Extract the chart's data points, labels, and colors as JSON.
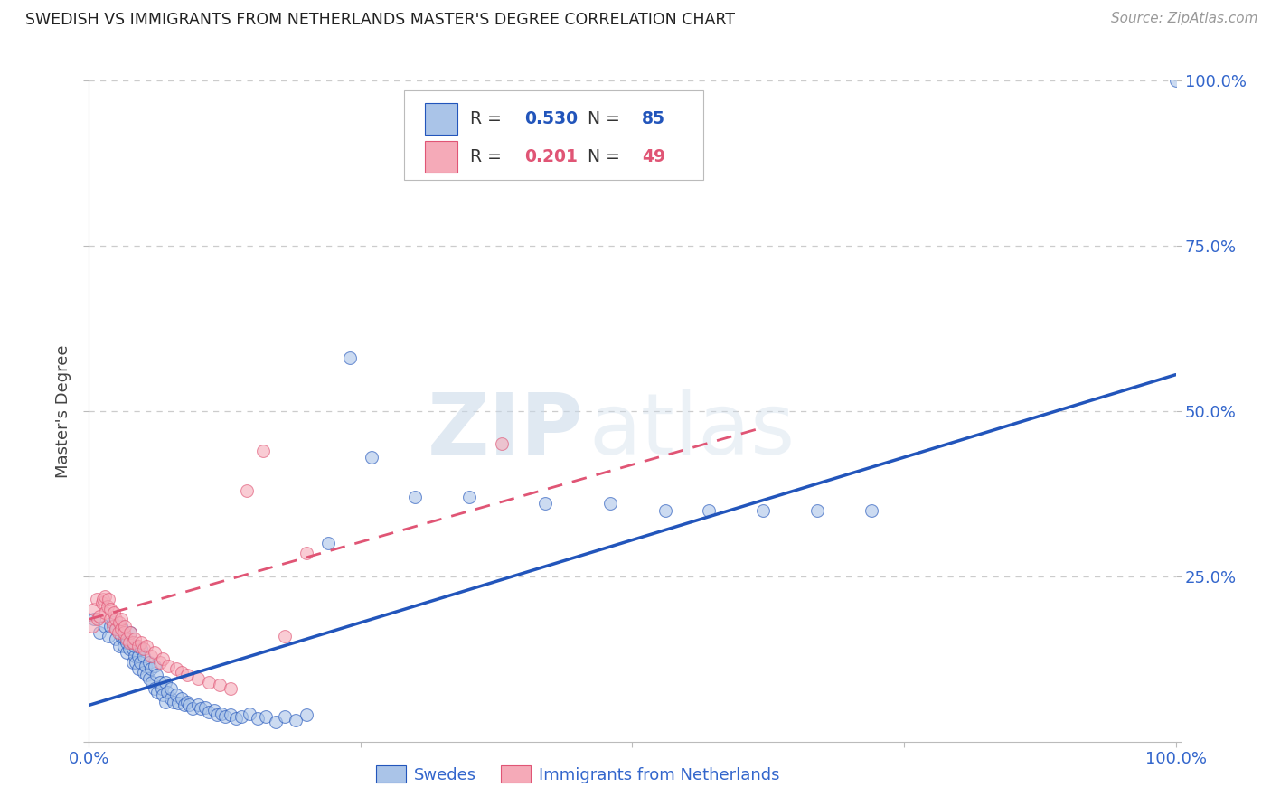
{
  "title": "SWEDISH VS IMMIGRANTS FROM NETHERLANDS MASTER'S DEGREE CORRELATION CHART",
  "source": "Source: ZipAtlas.com",
  "ylabel": "Master's Degree",
  "watermark_zip": "ZIP",
  "watermark_atlas": "atlas",
  "xlim": [
    0,
    1
  ],
  "ylim": [
    0,
    1
  ],
  "blue_R": "0.530",
  "blue_N": "85",
  "pink_R": "0.201",
  "pink_N": "49",
  "blue_color": "#aac4e8",
  "pink_color": "#f5aab8",
  "line_blue": "#2255bb",
  "line_pink": "#e05575",
  "tick_color": "#3366cc",
  "legend_label_blue": "Swedes",
  "legend_label_pink": "Immigrants from Netherlands",
  "blue_x": [
    0.005,
    0.01,
    0.015,
    0.018,
    0.02,
    0.022,
    0.025,
    0.025,
    0.028,
    0.03,
    0.03,
    0.032,
    0.033,
    0.035,
    0.035,
    0.037,
    0.038,
    0.04,
    0.04,
    0.042,
    0.042,
    0.043,
    0.045,
    0.045,
    0.047,
    0.048,
    0.05,
    0.05,
    0.052,
    0.053,
    0.055,
    0.055,
    0.057,
    0.058,
    0.06,
    0.06,
    0.062,
    0.063,
    0.065,
    0.067,
    0.068,
    0.07,
    0.07,
    0.072,
    0.075,
    0.075,
    0.078,
    0.08,
    0.082,
    0.085,
    0.088,
    0.09,
    0.092,
    0.095,
    0.1,
    0.103,
    0.107,
    0.11,
    0.115,
    0.118,
    0.122,
    0.125,
    0.13,
    0.135,
    0.14,
    0.148,
    0.155,
    0.163,
    0.172,
    0.18,
    0.19,
    0.2,
    0.22,
    0.24,
    0.26,
    0.3,
    0.35,
    0.42,
    0.48,
    0.53,
    0.57,
    0.62,
    0.67,
    0.72,
    1.0
  ],
  "blue_y": [
    0.185,
    0.165,
    0.175,
    0.16,
    0.175,
    0.18,
    0.155,
    0.17,
    0.145,
    0.16,
    0.175,
    0.145,
    0.155,
    0.135,
    0.15,
    0.14,
    0.165,
    0.12,
    0.14,
    0.13,
    0.145,
    0.12,
    0.11,
    0.13,
    0.12,
    0.14,
    0.105,
    0.13,
    0.115,
    0.1,
    0.095,
    0.12,
    0.11,
    0.09,
    0.08,
    0.115,
    0.1,
    0.075,
    0.09,
    0.08,
    0.07,
    0.06,
    0.09,
    0.075,
    0.065,
    0.08,
    0.06,
    0.07,
    0.058,
    0.065,
    0.055,
    0.06,
    0.055,
    0.05,
    0.055,
    0.05,
    0.052,
    0.045,
    0.048,
    0.04,
    0.042,
    0.038,
    0.04,
    0.035,
    0.038,
    0.042,
    0.035,
    0.038,
    0.03,
    0.038,
    0.032,
    0.04,
    0.3,
    0.58,
    0.43,
    0.37,
    0.37,
    0.36,
    0.36,
    0.35,
    0.35,
    0.35,
    0.35,
    0.35,
    1.0
  ],
  "pink_x": [
    0.003,
    0.005,
    0.007,
    0.008,
    0.01,
    0.012,
    0.013,
    0.015,
    0.015,
    0.017,
    0.018,
    0.02,
    0.02,
    0.022,
    0.023,
    0.025,
    0.025,
    0.027,
    0.028,
    0.03,
    0.03,
    0.032,
    0.033,
    0.035,
    0.037,
    0.038,
    0.04,
    0.042,
    0.045,
    0.048,
    0.05,
    0.053,
    0.057,
    0.06,
    0.065,
    0.068,
    0.073,
    0.08,
    0.085,
    0.09,
    0.1,
    0.11,
    0.12,
    0.13,
    0.145,
    0.16,
    0.18,
    0.2,
    0.38
  ],
  "pink_y": [
    0.175,
    0.2,
    0.215,
    0.185,
    0.19,
    0.21,
    0.215,
    0.22,
    0.195,
    0.205,
    0.215,
    0.185,
    0.2,
    0.175,
    0.195,
    0.17,
    0.185,
    0.165,
    0.18,
    0.17,
    0.185,
    0.165,
    0.175,
    0.155,
    0.15,
    0.165,
    0.15,
    0.155,
    0.145,
    0.15,
    0.14,
    0.145,
    0.13,
    0.135,
    0.12,
    0.125,
    0.115,
    0.11,
    0.105,
    0.1,
    0.095,
    0.09,
    0.085,
    0.08,
    0.38,
    0.44,
    0.16,
    0.285,
    0.45
  ],
  "blue_line_x0": 0.0,
  "blue_line_y0": 0.055,
  "blue_line_x1": 1.0,
  "blue_line_y1": 0.555,
  "pink_line_x0": 0.0,
  "pink_line_y0": 0.185,
  "pink_line_x1": 0.62,
  "pink_line_y1": 0.475
}
